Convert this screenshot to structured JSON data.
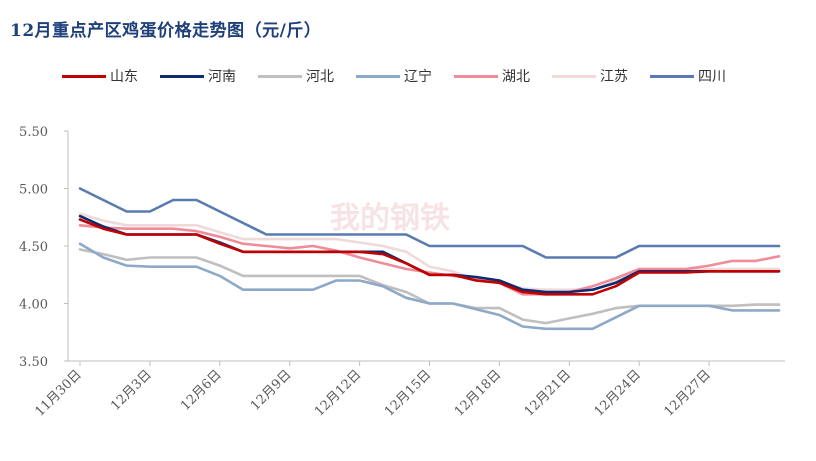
{
  "chart_data": {
    "type": "line",
    "title": "12月重点产区鸡蛋价格走势图（元/斤）",
    "ylim": [
      3.5,
      5.5
    ],
    "yticks": [
      "3.50",
      "4.00",
      "4.50",
      "5.00",
      "5.50"
    ],
    "xticks": [
      "11月30日",
      "12月3日",
      "12月6日",
      "12月9日",
      "12月12日",
      "12月15日",
      "12月18日",
      "12月21日",
      "12月24日",
      "12月27日"
    ],
    "x": [
      "11月30日",
      "12月1日",
      "12月2日",
      "12月3日",
      "12月4日",
      "12月5日",
      "12月6日",
      "12月7日",
      "12月8日",
      "12月9日",
      "12月10日",
      "12月11日",
      "12月12日",
      "12月13日",
      "12月14日",
      "12月15日",
      "12月16日",
      "12月17日",
      "12月18日",
      "12月19日",
      "12月20日",
      "12月21日",
      "12月22日",
      "12月23日",
      "12月24日",
      "12月25日",
      "12月26日",
      "12月27日",
      "12月28日",
      "12月29日",
      "12月30日"
    ],
    "grid": false,
    "legend_position": "top",
    "watermark": "我的钢铁",
    "series": [
      {
        "name": "山东",
        "color": "#c00000",
        "values": [
          4.73,
          4.65,
          4.6,
          4.6,
          4.6,
          4.6,
          4.52,
          4.45,
          4.45,
          4.45,
          4.45,
          4.45,
          4.45,
          4.43,
          4.35,
          4.25,
          4.25,
          4.2,
          4.18,
          4.1,
          4.08,
          4.08,
          4.08,
          4.15,
          4.27,
          4.27,
          4.27,
          4.28,
          4.28,
          4.28,
          4.28
        ]
      },
      {
        "name": "河南",
        "color": "#0e2b6e",
        "values": [
          4.76,
          4.67,
          4.6,
          4.6,
          4.6,
          4.6,
          4.53,
          4.45,
          4.45,
          4.45,
          4.45,
          4.45,
          4.45,
          4.45,
          4.35,
          4.25,
          4.25,
          4.23,
          4.2,
          4.12,
          4.1,
          4.1,
          4.12,
          4.18,
          4.28,
          4.28,
          4.28,
          4.28,
          4.28,
          4.28,
          4.28
        ]
      },
      {
        "name": "河北",
        "color": "#bfbfbf",
        "values": [
          4.47,
          4.43,
          4.38,
          4.4,
          4.4,
          4.4,
          4.33,
          4.24,
          4.24,
          4.24,
          4.24,
          4.24,
          4.24,
          4.16,
          4.1,
          4.0,
          4.0,
          3.96,
          3.96,
          3.86,
          3.83,
          3.87,
          3.91,
          3.96,
          3.98,
          3.98,
          3.98,
          3.98,
          3.98,
          3.99,
          3.99
        ]
      },
      {
        "name": "辽宁",
        "color": "#8ea9c8",
        "values": [
          4.52,
          4.4,
          4.33,
          4.32,
          4.32,
          4.32,
          4.24,
          4.12,
          4.12,
          4.12,
          4.12,
          4.2,
          4.2,
          4.15,
          4.05,
          4.0,
          4.0,
          3.95,
          3.9,
          3.8,
          3.78,
          3.78,
          3.78,
          3.88,
          3.98,
          3.98,
          3.98,
          3.98,
          3.94,
          3.94,
          3.94
        ]
      },
      {
        "name": "湖北",
        "color": "#f08c9a",
        "values": [
          4.68,
          4.66,
          4.65,
          4.65,
          4.65,
          4.63,
          4.58,
          4.52,
          4.5,
          4.48,
          4.5,
          4.46,
          4.4,
          4.35,
          4.3,
          4.27,
          4.24,
          4.22,
          4.18,
          4.08,
          4.08,
          4.1,
          4.15,
          4.22,
          4.3,
          4.3,
          4.3,
          4.33,
          4.37,
          4.37,
          4.41
        ]
      },
      {
        "name": "江苏",
        "color": "#efd9d9",
        "values": [
          4.78,
          4.72,
          4.68,
          4.68,
          4.68,
          4.68,
          4.62,
          4.56,
          4.56,
          4.56,
          4.56,
          4.56,
          4.53,
          4.5,
          4.45,
          4.32,
          4.28,
          4.2,
          4.18,
          4.13,
          4.12,
          4.12,
          4.12,
          4.2,
          4.3,
          4.3,
          4.3,
          4.3,
          4.3,
          4.3,
          4.3
        ]
      },
      {
        "name": "四川",
        "color": "#5a7bb0",
        "values": [
          5.0,
          4.9,
          4.8,
          4.8,
          4.9,
          4.9,
          4.8,
          4.7,
          4.6,
          4.6,
          4.6,
          4.6,
          4.6,
          4.6,
          4.6,
          4.5,
          4.5,
          4.5,
          4.5,
          4.5,
          4.4,
          4.4,
          4.4,
          4.4,
          4.5,
          4.5,
          4.5,
          4.5,
          4.5,
          4.5,
          4.5
        ]
      }
    ]
  }
}
